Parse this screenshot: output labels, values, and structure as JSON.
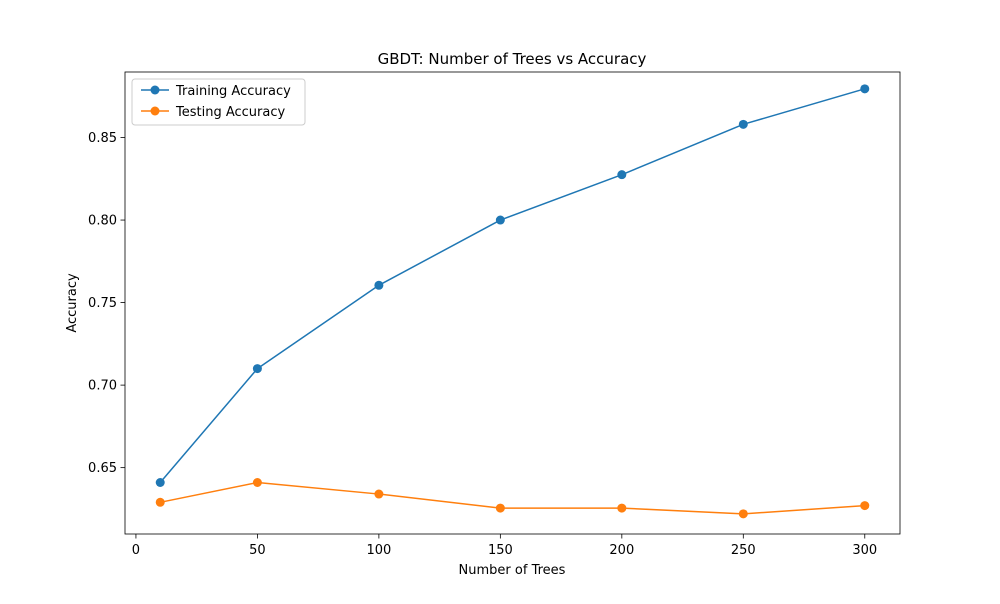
{
  "chart_data": {
    "type": "line",
    "title": "GBDT: Number of Trees vs Accuracy",
    "xlabel": "Number of Trees",
    "ylabel": "Accuracy",
    "x": [
      10,
      50,
      100,
      150,
      200,
      250,
      300
    ],
    "xlim": [
      -4.5,
      314.5
    ],
    "ylim": [
      0.6098,
      0.8897
    ],
    "xticks": [
      0,
      50,
      100,
      150,
      200,
      250,
      300
    ],
    "yticks": [
      0.65,
      0.7,
      0.75,
      0.8,
      0.85
    ],
    "xtick_labels": [
      "0",
      "50",
      "100",
      "150",
      "200",
      "250",
      "300"
    ],
    "ytick_labels": [
      "0.65",
      "0.70",
      "0.75",
      "0.80",
      "0.85"
    ],
    "grid": false,
    "legend_position": "upper-left",
    "marker": "circle",
    "series": [
      {
        "name": "Training Accuracy",
        "color": "#1f77b4",
        "values": [
          0.641,
          0.71,
          0.7605,
          0.8,
          0.8275,
          0.858,
          0.8795
        ]
      },
      {
        "name": "Testing Accuracy",
        "color": "#ff7f0e",
        "values": [
          0.629,
          0.641,
          0.634,
          0.6255,
          0.6255,
          0.622,
          0.627
        ]
      }
    ]
  }
}
